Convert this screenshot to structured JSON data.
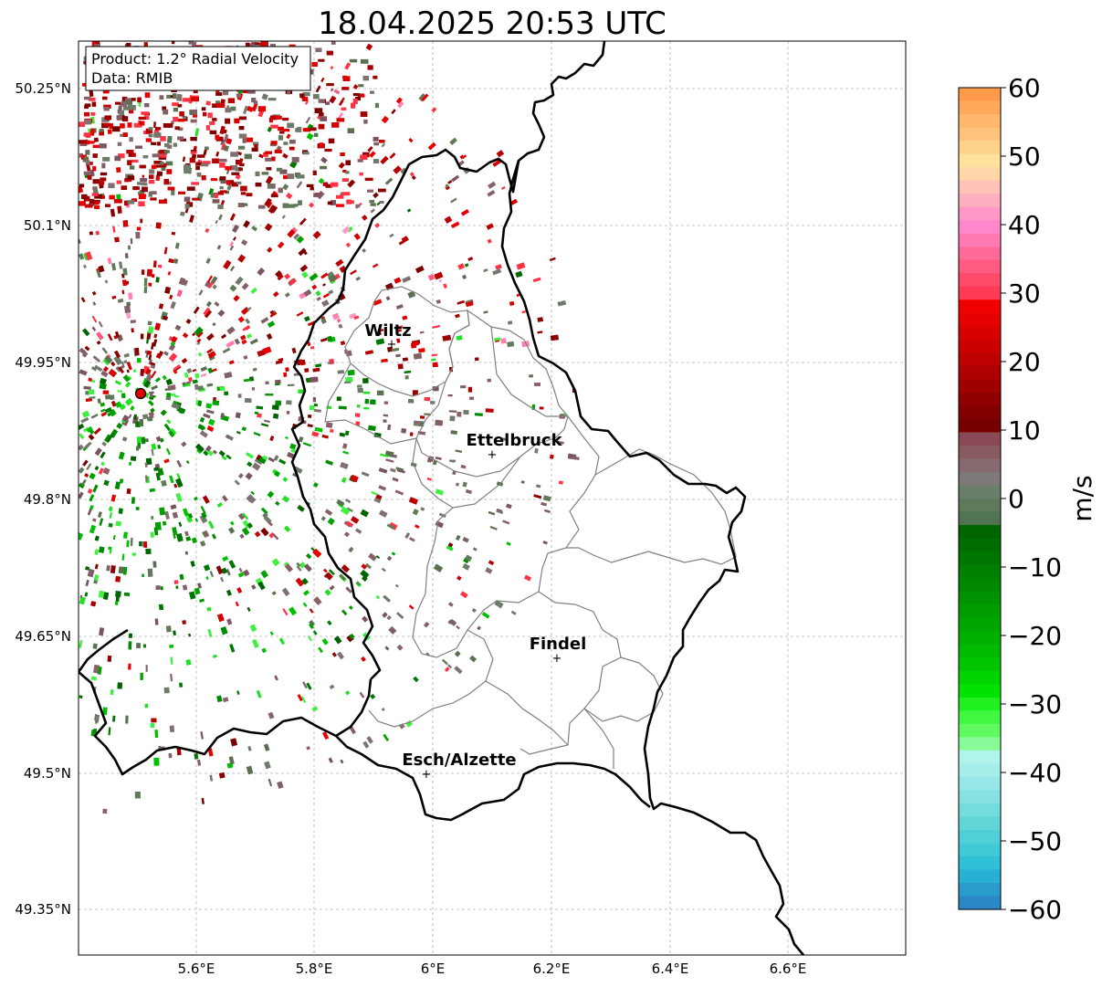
{
  "title": "18.04.2025 20:53 UTC",
  "info": {
    "product": "Product: 1.2° Radial Velocity",
    "data": "Data: RMIB"
  },
  "axes": {
    "x_ticks": [
      "5.6°E",
      "5.8°E",
      "6°E",
      "6.2°E",
      "6.4°E",
      "6.6°E"
    ],
    "y_ticks": [
      "50.25°N",
      "50.1°N",
      "49.95°N",
      "49.8°N",
      "49.65°N",
      "49.5°N",
      "49.35°N"
    ]
  },
  "cities": [
    {
      "name": "Wiltz",
      "lon": 5.93,
      "lat": 49.97
    },
    {
      "name": "Ettelbruck",
      "lon": 6.1,
      "lat": 49.85
    },
    {
      "name": "Findel",
      "lon": 6.21,
      "lat": 49.63
    },
    {
      "name": "Esch/Alzette",
      "lon": 5.99,
      "lat": 49.5
    }
  ],
  "colorbar": {
    "label": "m/s",
    "ticks": [
      "60",
      "50",
      "40",
      "30",
      "20",
      "10",
      "0",
      "−10",
      "−20",
      "−30",
      "−40",
      "−50",
      "−60"
    ],
    "range": [
      -60,
      60
    ]
  },
  "colors": {
    "border": "#000000",
    "canton": "#808080",
    "grid": "#b0b0b0",
    "radar_site": "#e00000"
  }
}
